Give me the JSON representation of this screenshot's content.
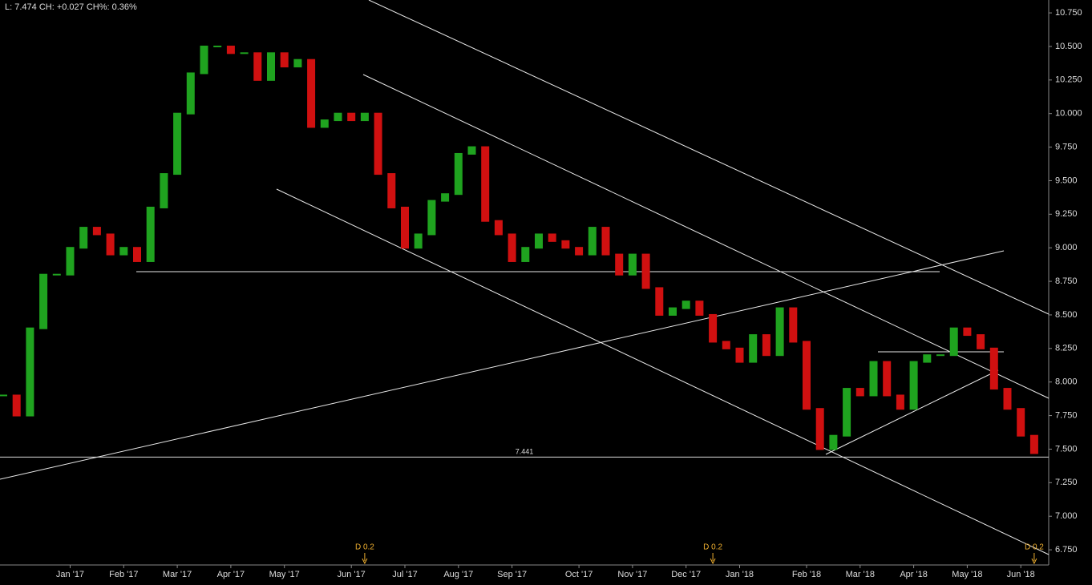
{
  "header": "L: 7.474 CH: +0.027 CH%: 0.36%",
  "chart_data": {
    "type": "price-bars",
    "categories": [
      null,
      null,
      null,
      null,
      null,
      "Jan '17",
      null,
      null,
      null,
      "Feb '17",
      null,
      null,
      null,
      "Mar '17",
      null,
      null,
      null,
      "Apr '17",
      null,
      null,
      null,
      "May '17",
      null,
      null,
      null,
      null,
      "Jun '17",
      null,
      null,
      null,
      "Jul '17",
      null,
      null,
      null,
      "Aug '17",
      null,
      null,
      null,
      "Sep '17",
      null,
      null,
      null,
      null,
      "Oct '17",
      null,
      null,
      null,
      "Nov '17",
      null,
      null,
      null,
      "Dec '17",
      null,
      null,
      null,
      "Jan '18",
      null,
      null,
      null,
      null,
      "Feb '18",
      null,
      null,
      null,
      "Mar '18",
      null,
      null,
      null,
      "Apr '18",
      null,
      null,
      null,
      "May '18",
      null,
      null,
      null,
      "Jun '18",
      null
    ],
    "values": [
      7.9,
      7.75,
      8.4,
      8.8,
      8.8,
      9.0,
      9.15,
      9.1,
      8.95,
      9.0,
      8.9,
      9.3,
      9.55,
      10.0,
      10.3,
      10.5,
      10.5,
      10.45,
      10.45,
      10.25,
      10.45,
      10.35,
      10.4,
      9.9,
      9.95,
      10.0,
      9.95,
      10.0,
      9.55,
      9.3,
      9.0,
      9.1,
      9.35,
      9.4,
      9.7,
      9.75,
      9.2,
      9.1,
      8.9,
      9.0,
      9.1,
      9.05,
      9.0,
      8.95,
      9.15,
      8.95,
      8.8,
      8.95,
      8.7,
      8.5,
      8.55,
      8.6,
      8.5,
      8.3,
      8.25,
      8.15,
      8.35,
      8.2,
      8.55,
      8.3,
      7.8,
      7.5,
      7.6,
      7.95,
      7.9,
      8.15,
      7.9,
      7.8,
      8.15,
      8.2,
      8.2,
      8.4,
      8.35,
      8.25,
      7.95,
      7.8,
      7.6,
      7.47
    ],
    "event_labels": [
      null,
      null,
      null,
      null,
      null,
      null,
      null,
      null,
      null,
      null,
      null,
      null,
      null,
      null,
      null,
      null,
      null,
      null,
      null,
      null,
      null,
      null,
      null,
      null,
      null,
      null,
      null,
      "D 0.2",
      null,
      null,
      null,
      null,
      null,
      null,
      null,
      null,
      null,
      null,
      null,
      null,
      null,
      null,
      null,
      null,
      null,
      null,
      null,
      null,
      null,
      null,
      null,
      null,
      null,
      "D 0.2",
      null,
      null,
      null,
      null,
      null,
      null,
      null,
      null,
      null,
      null,
      null,
      null,
      null,
      null,
      null,
      null,
      null,
      null,
      null,
      null,
      null,
      null,
      null,
      "D 0.2"
    ],
    "up_color": "#1fa31f",
    "down_color": "#d01010",
    "hline": 7.441,
    "ylim": [
      6.637,
      10.846
    ],
    "yticks": [
      {
        "value": 6.75,
        "label": "6.750"
      },
      {
        "value": 7.0,
        "label": "7.000"
      },
      {
        "value": 7.25,
        "label": "7.250"
      },
      {
        "value": 7.5,
        "label": "7.500"
      },
      {
        "value": 7.75,
        "label": "7.750"
      },
      {
        "value": 8.0,
        "label": "8.000"
      },
      {
        "value": 8.25,
        "label": "8.250"
      },
      {
        "value": 8.5,
        "label": "8.500"
      },
      {
        "value": 8.75,
        "label": "8.750"
      },
      {
        "value": 9.0,
        "label": "9.000"
      },
      {
        "value": 9.25,
        "label": "9.250"
      },
      {
        "value": 9.5,
        "label": "9.500"
      },
      {
        "value": 9.75,
        "label": "9.750"
      },
      {
        "value": 10.0,
        "label": "10.000"
      },
      {
        "value": 10.25,
        "label": "10.250"
      },
      {
        "value": 10.5,
        "label": "10.500"
      },
      {
        "value": 10.75,
        "label": "10.750"
      }
    ]
  }
}
